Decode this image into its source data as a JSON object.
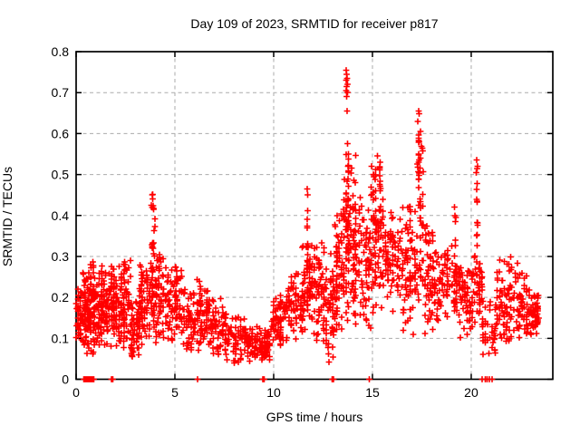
{
  "page": {
    "background": "#ffffff"
  },
  "chart_data": {
    "type": "scatter",
    "title": "Day 109 of 2023, SRMTID for receiver p817",
    "xlabel": "GPS time / hours",
    "ylabel": "SRMTID / TECUs",
    "xlim": [
      0,
      24.13
    ],
    "ylim": [
      0,
      0.8
    ],
    "x_ticks": [
      0,
      5,
      10,
      15,
      20
    ],
    "x_tick_labels": [
      "0",
      "5",
      "10",
      "15",
      "20"
    ],
    "y_ticks": [
      0,
      0.1,
      0.2,
      0.3,
      0.4,
      0.5,
      0.6,
      0.7,
      0.8
    ],
    "y_tick_labels": [
      "0",
      "0.1",
      "0.2",
      "0.3",
      "0.4",
      "0.5",
      "0.6",
      "0.7",
      "0.8"
    ],
    "grid": {
      "visible": true,
      "color": "#ababab",
      "dash": [
        4,
        3.5
      ],
      "x_lines": [
        5,
        10,
        15,
        20
      ],
      "y_lines": [
        0.1,
        0.2,
        0.3,
        0.4,
        0.5,
        0.6,
        0.7
      ]
    },
    "frame_color": "#000000",
    "marker": {
      "shape": "plus",
      "color": "#ff0000",
      "size": 6.8,
      "stroke_width": 1.6
    },
    "legend": {
      "visible": false
    },
    "scatter_density": {
      "note": "Dense noisy scatter read from pixels; bands=[x_start,x_end,y_min,y_max,count], columns=[x,y_min,y_max,count] vertical streaks, outliers=[x,y] explicit high points, zero_axis_marks_x = points plotted at y=0 on the axis.",
      "bands": [
        [
          0.0,
          0.35,
          0.09,
          0.22,
          40
        ],
        [
          0.35,
          0.6,
          0.05,
          0.27,
          55
        ],
        [
          0.6,
          0.95,
          0.05,
          0.29,
          65
        ],
        [
          0.95,
          1.5,
          0.08,
          0.26,
          70
        ],
        [
          1.5,
          2.15,
          0.07,
          0.29,
          75
        ],
        [
          2.15,
          2.75,
          0.07,
          0.3,
          70
        ],
        [
          2.75,
          3.2,
          0.05,
          0.2,
          50
        ],
        [
          3.2,
          3.75,
          0.07,
          0.28,
          55
        ],
        [
          3.75,
          4.0,
          0.1,
          0.44,
          30
        ],
        [
          4.0,
          4.65,
          0.08,
          0.3,
          60
        ],
        [
          4.65,
          5.35,
          0.08,
          0.3,
          60
        ],
        [
          5.35,
          6.05,
          0.06,
          0.22,
          55
        ],
        [
          6.05,
          6.65,
          0.06,
          0.25,
          50
        ],
        [
          6.65,
          7.6,
          0.05,
          0.2,
          70
        ],
        [
          7.6,
          8.6,
          0.04,
          0.16,
          65
        ],
        [
          8.6,
          9.35,
          0.03,
          0.13,
          55
        ],
        [
          9.35,
          9.85,
          0.04,
          0.12,
          45
        ],
        [
          9.85,
          10.6,
          0.08,
          0.2,
          60
        ],
        [
          10.6,
          11.45,
          0.09,
          0.26,
          70
        ],
        [
          11.45,
          12.05,
          0.11,
          0.33,
          60
        ],
        [
          12.05,
          12.65,
          0.09,
          0.34,
          55
        ],
        [
          12.65,
          13.1,
          0.04,
          0.31,
          50
        ],
        [
          13.1,
          13.55,
          0.1,
          0.43,
          55
        ],
        [
          13.55,
          14.2,
          0.13,
          0.55,
          80
        ],
        [
          14.2,
          14.9,
          0.11,
          0.45,
          65
        ],
        [
          14.9,
          15.6,
          0.14,
          0.52,
          70
        ],
        [
          15.6,
          16.5,
          0.16,
          0.42,
          80
        ],
        [
          16.5,
          17.25,
          0.1,
          0.43,
          65
        ],
        [
          17.25,
          17.6,
          0.15,
          0.61,
          40
        ],
        [
          17.6,
          18.35,
          0.1,
          0.38,
          60
        ],
        [
          18.35,
          19.35,
          0.12,
          0.33,
          70
        ],
        [
          19.35,
          20.1,
          0.1,
          0.28,
          65
        ],
        [
          20.1,
          20.55,
          0.13,
          0.31,
          40
        ],
        [
          20.55,
          21.25,
          0.06,
          0.21,
          40
        ],
        [
          21.25,
          22.35,
          0.09,
          0.3,
          85
        ],
        [
          22.35,
          23.05,
          0.1,
          0.26,
          60
        ],
        [
          23.05,
          23.42,
          0.11,
          0.22,
          40
        ]
      ],
      "columns": [
        [
          1.3,
          0.14,
          0.3,
          10
        ],
        [
          1.9,
          0.15,
          0.29,
          9
        ],
        [
          2.45,
          0.12,
          0.3,
          10
        ],
        [
          3.3,
          0.1,
          0.28,
          10
        ],
        [
          3.87,
          0.15,
          0.455,
          14
        ],
        [
          4.2,
          0.12,
          0.31,
          10
        ],
        [
          5.05,
          0.12,
          0.3,
          10
        ],
        [
          6.3,
          0.08,
          0.25,
          9
        ],
        [
          10.35,
          0.1,
          0.22,
          8
        ],
        [
          11.7,
          0.18,
          0.465,
          12
        ],
        [
          12.3,
          0.12,
          0.35,
          10
        ],
        [
          13.2,
          0.12,
          0.42,
          12
        ],
        [
          13.68,
          0.2,
          0.55,
          13
        ],
        [
          13.78,
          0.25,
          0.575,
          11
        ],
        [
          14.05,
          0.15,
          0.5,
          12
        ],
        [
          15.15,
          0.22,
          0.52,
          12
        ],
        [
          15.38,
          0.2,
          0.545,
          10
        ],
        [
          16.9,
          0.15,
          0.43,
          10
        ],
        [
          17.35,
          0.38,
          0.61,
          14
        ],
        [
          17.8,
          0.12,
          0.38,
          10
        ],
        [
          19.2,
          0.15,
          0.42,
          8
        ],
        [
          20.3,
          0.3,
          0.54,
          12
        ]
      ],
      "outliers": [
        [
          13.66,
          0.73
        ],
        [
          13.68,
          0.755
        ],
        [
          13.68,
          0.705
        ],
        [
          13.7,
          0.745
        ],
        [
          13.7,
          0.715
        ],
        [
          13.7,
          0.69
        ],
        [
          13.72,
          0.735
        ],
        [
          13.72,
          0.655
        ],
        [
          13.73,
          0.7
        ],
        [
          13.74,
          0.72
        ],
        [
          13.75,
          0.575
        ],
        [
          13.78,
          0.55
        ],
        [
          17.3,
          0.63
        ],
        [
          17.33,
          0.655
        ],
        [
          17.36,
          0.648
        ],
        [
          15.25,
          0.545
        ],
        [
          15.4,
          0.53
        ],
        [
          14.95,
          0.52
        ],
        [
          15.05,
          0.5
        ],
        [
          20.28,
          0.535
        ],
        [
          20.32,
          0.52
        ],
        [
          20.25,
          0.505
        ],
        [
          19.15,
          0.42
        ],
        [
          19.18,
          0.4
        ],
        [
          11.7,
          0.465
        ],
        [
          11.72,
          0.45
        ],
        [
          3.85,
          0.45
        ],
        [
          3.87,
          0.44
        ]
      ],
      "zero_axis_marks_x": [
        0.4,
        0.45,
        0.5,
        0.55,
        0.6,
        0.65,
        0.7,
        0.75,
        0.8,
        0.85,
        0.9,
        1.8,
        1.86,
        6.15,
        9.45,
        9.52,
        12.95,
        13.02,
        14.85,
        20.55,
        20.72,
        20.8,
        20.92,
        21.05
      ]
    }
  }
}
